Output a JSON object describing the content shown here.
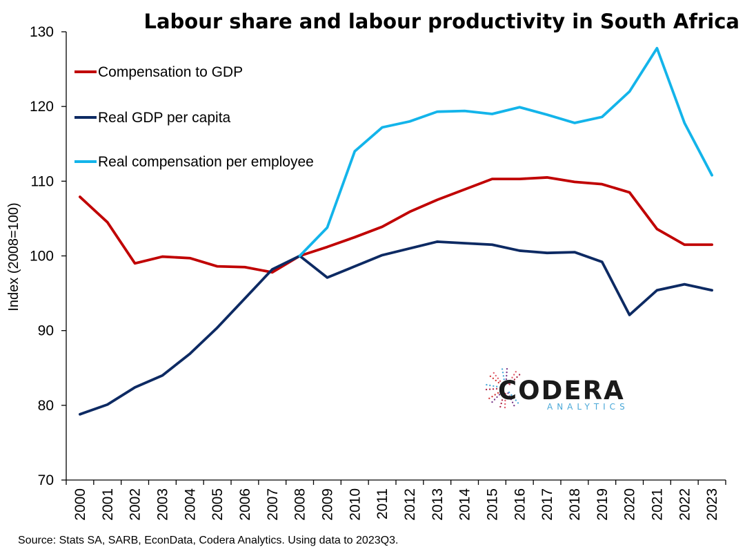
{
  "chart_data": {
    "type": "line",
    "title": "Labour share and labour productivity in South Africa",
    "ylabel": "Index (2008=100)",
    "xlabel": "",
    "ylim": [
      70,
      130
    ],
    "yticks": [
      70,
      80,
      90,
      100,
      110,
      120,
      130
    ],
    "grid": false,
    "legend_position": "top-left",
    "categories": [
      "2000",
      "2001",
      "2002",
      "2003",
      "2004",
      "2005",
      "2006",
      "2007",
      "2008",
      "2009",
      "2010",
      "2011",
      "2012",
      "2013",
      "2014",
      "2015",
      "2016",
      "2017",
      "2018",
      "2019",
      "2020",
      "2021",
      "2022",
      "2023"
    ],
    "series": [
      {
        "name": "Compensation to GDP",
        "color": "#c00000",
        "values": [
          107.9,
          104.5,
          99.0,
          99.9,
          99.7,
          98.6,
          98.5,
          97.8,
          100.0,
          101.2,
          102.5,
          103.9,
          105.9,
          107.5,
          108.9,
          110.3,
          110.3,
          110.5,
          109.9,
          109.6,
          108.5,
          103.6,
          101.5,
          101.5
        ]
      },
      {
        "name": "Real GDP per capita",
        "color": "#0d2a63",
        "values": [
          78.8,
          80.1,
          82.4,
          84.0,
          86.9,
          90.4,
          94.3,
          98.2,
          100.0,
          97.1,
          98.6,
          100.1,
          101.0,
          101.9,
          101.7,
          101.5,
          100.7,
          100.4,
          100.5,
          99.2,
          92.1,
          95.4,
          96.2,
          95.4
        ]
      },
      {
        "name": "Real compensation per employee",
        "color": "#13b4ea",
        "values": [
          null,
          null,
          null,
          null,
          null,
          null,
          null,
          null,
          100.0,
          103.8,
          114.0,
          117.2,
          118.0,
          119.3,
          119.4,
          119.0,
          119.9,
          118.9,
          117.8,
          118.6,
          122.0,
          127.8,
          117.8,
          110.8
        ]
      }
    ]
  },
  "source": "Source: Stats SA, SARB, EconData, Codera Analytics. Using data to 2023Q3.",
  "logo": {
    "name": "CODERA",
    "sub": "ANALYTICS"
  }
}
